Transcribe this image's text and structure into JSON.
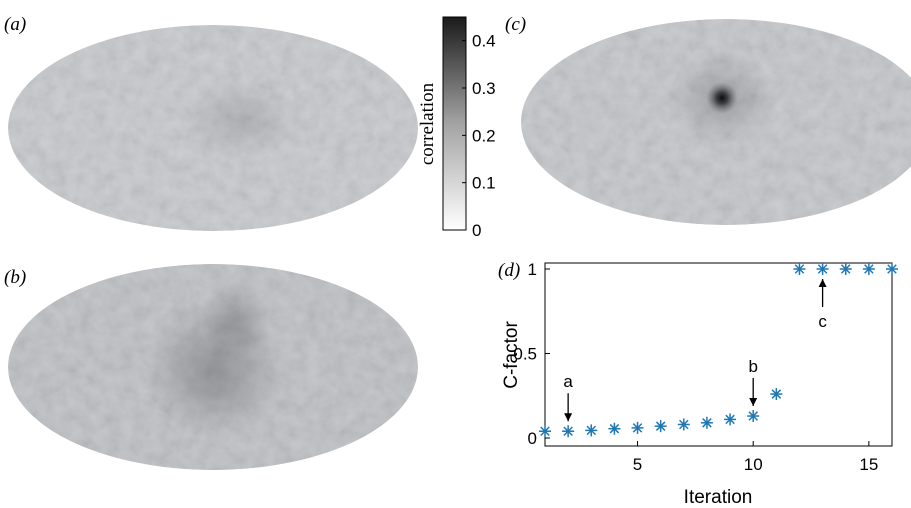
{
  "colors": {
    "marker": "#1f77b4",
    "map_base": "#c6c9cc",
    "map_dark": "#2a2c2e",
    "text": "#000000"
  },
  "panels": {
    "a": {
      "label": "(a)"
    },
    "b": {
      "label": "(b)"
    },
    "c": {
      "label": "(c)"
    },
    "d": {
      "label": "(d)"
    }
  },
  "colorbar": {
    "label": "correlation",
    "range": [
      0,
      0.45
    ],
    "ticks": [
      "0",
      "0.1",
      "0.2",
      "0.3",
      "0.4"
    ],
    "tick_values": [
      0,
      0.1,
      0.2,
      0.3,
      0.4
    ],
    "colormap": "white-to-black"
  },
  "chart_data": {
    "type": "scatter",
    "marker": "asterisk",
    "xlabel": "Iteration",
    "ylabel": "C-factor",
    "xlim": [
      1,
      16
    ],
    "ylim": [
      0,
      1
    ],
    "xticks": [
      "5",
      "10",
      "15"
    ],
    "xtick_values": [
      5,
      10,
      15
    ],
    "yticks": [
      "0",
      "0.5",
      "1"
    ],
    "ytick_values": [
      0,
      0.5,
      1
    ],
    "x": [
      1,
      2,
      3,
      4,
      5,
      6,
      7,
      8,
      9,
      10,
      11,
      12,
      13,
      14,
      15,
      16
    ],
    "y": [
      0.04,
      0.04,
      0.045,
      0.055,
      0.06,
      0.07,
      0.08,
      0.09,
      0.11,
      0.13,
      0.26,
      1.0,
      1.0,
      1.0,
      1.0,
      1.0
    ],
    "annotations": [
      {
        "text": "a",
        "x": 2,
        "direction": "down"
      },
      {
        "text": "b",
        "x": 10,
        "direction": "down"
      },
      {
        "text": "c",
        "x": 13,
        "direction": "up"
      }
    ]
  }
}
